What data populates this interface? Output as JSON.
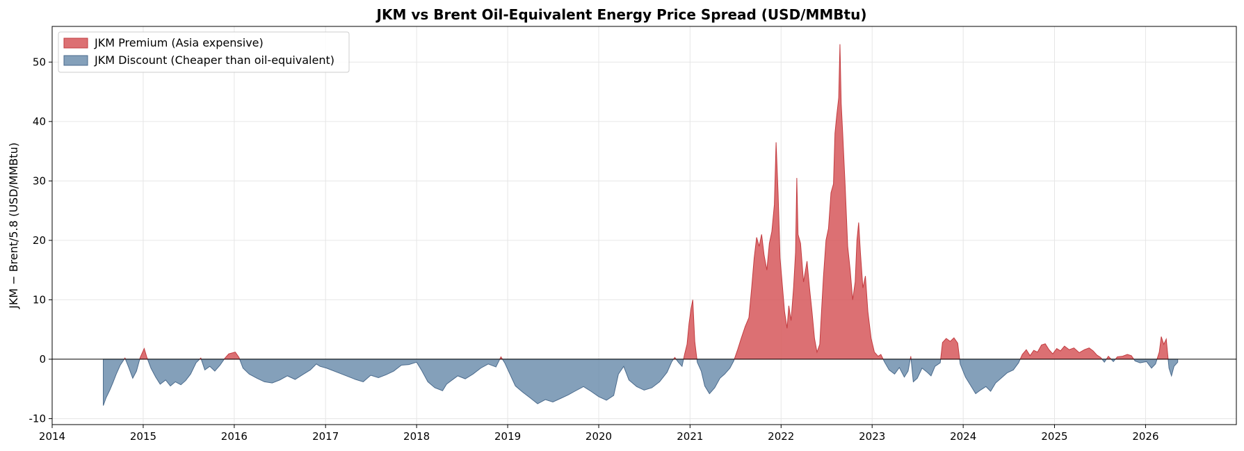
{
  "chart_data": {
    "type": "area",
    "title": "JKM vs Brent Oil-Equivalent Energy Price Spread (USD/MMBtu)",
    "xlabel": "",
    "ylabel": "JKM − Brent/5.8 (USD/MMBtu)",
    "xlim": [
      "2014-01-01",
      "2026-12-31"
    ],
    "ylim": [
      -11,
      56
    ],
    "x_ticks": [
      "2014",
      "2015",
      "2016",
      "2017",
      "2018",
      "2019",
      "2020",
      "2021",
      "2022",
      "2023",
      "2024",
      "2025",
      "2026"
    ],
    "y_ticks": [
      -10,
      0,
      10,
      20,
      30,
      40,
      50
    ],
    "y_tick_labels": [
      "-10",
      "0",
      "10",
      "20",
      "30",
      "40",
      "50"
    ],
    "grid": true,
    "legend_position": "top-left",
    "zero_line": true,
    "colors": {
      "premium_fill": "#d6575a",
      "premium_edge": "#c23b3f",
      "discount_fill": "#6f8fae",
      "discount_edge": "#4a6a8c",
      "zero_line": "#000000",
      "grid": "#e6e6e6"
    },
    "legend": [
      {
        "name": "JKM Premium (Asia expensive)",
        "color": "#d6575a"
      },
      {
        "name": "JKM Discount (Cheaper than oil-equivalent)",
        "color": "#6f8fae"
      }
    ],
    "series": [
      {
        "name": "JKM − Brent/5.8",
        "points": [
          [
            "2014-07-25",
            -7.8
          ],
          [
            "2014-08-05",
            -6.5
          ],
          [
            "2014-08-20",
            -5.2
          ],
          [
            "2014-09-01",
            -4.0
          ],
          [
            "2014-09-15",
            -2.5
          ],
          [
            "2014-10-01",
            -1.0
          ],
          [
            "2014-10-20",
            0.2
          ],
          [
            "2014-11-05",
            -1.5
          ],
          [
            "2014-11-20",
            -3.2
          ],
          [
            "2014-12-05",
            -2.0
          ],
          [
            "2014-12-20",
            0.3
          ],
          [
            "2015-01-05",
            1.8
          ],
          [
            "2015-01-15",
            0.4
          ],
          [
            "2015-02-01",
            -1.5
          ],
          [
            "2015-02-20",
            -3.0
          ],
          [
            "2015-03-10",
            -4.2
          ],
          [
            "2015-04-01",
            -3.5
          ],
          [
            "2015-04-20",
            -4.5
          ],
          [
            "2015-05-10",
            -3.8
          ],
          [
            "2015-06-01",
            -4.3
          ],
          [
            "2015-06-20",
            -3.6
          ],
          [
            "2015-07-10",
            -2.5
          ],
          [
            "2015-08-01",
            -0.6
          ],
          [
            "2015-08-20",
            0.2
          ],
          [
            "2015-09-05",
            -1.8
          ],
          [
            "2015-09-25",
            -1.2
          ],
          [
            "2015-10-15",
            -2.0
          ],
          [
            "2015-11-05",
            -1.0
          ],
          [
            "2015-11-25",
            0.2
          ],
          [
            "2015-12-10",
            0.9
          ],
          [
            "2016-01-05",
            1.2
          ],
          [
            "2016-01-20",
            0.3
          ],
          [
            "2016-02-05",
            -1.5
          ],
          [
            "2016-03-01",
            -2.5
          ],
          [
            "2016-04-01",
            -3.2
          ],
          [
            "2016-05-01",
            -3.8
          ],
          [
            "2016-06-01",
            -4.0
          ],
          [
            "2016-07-01",
            -3.5
          ],
          [
            "2016-08-01",
            -2.8
          ],
          [
            "2016-09-01",
            -3.4
          ],
          [
            "2016-10-01",
            -2.6
          ],
          [
            "2016-11-01",
            -1.8
          ],
          [
            "2016-11-25",
            -0.8
          ],
          [
            "2016-12-10",
            -1.2
          ],
          [
            "2017-01-05",
            -1.5
          ],
          [
            "2017-03-01",
            -2.4
          ],
          [
            "2017-05-01",
            -3.4
          ],
          [
            "2017-06-01",
            -3.8
          ],
          [
            "2017-07-01",
            -2.7
          ],
          [
            "2017-08-01",
            -3.1
          ],
          [
            "2017-09-01",
            -2.6
          ],
          [
            "2017-10-01",
            -2.0
          ],
          [
            "2017-11-01",
            -1.0
          ],
          [
            "2017-12-01",
            -0.9
          ],
          [
            "2018-01-01",
            -0.5
          ],
          [
            "2018-01-20",
            -1.8
          ],
          [
            "2018-02-15",
            -3.8
          ],
          [
            "2018-03-15",
            -4.8
          ],
          [
            "2018-04-15",
            -5.3
          ],
          [
            "2018-05-01",
            -4.2
          ],
          [
            "2018-05-20",
            -3.6
          ],
          [
            "2018-06-15",
            -2.8
          ],
          [
            "2018-07-15",
            -3.3
          ],
          [
            "2018-08-15",
            -2.5
          ],
          [
            "2018-09-15",
            -1.5
          ],
          [
            "2018-10-15",
            -0.8
          ],
          [
            "2018-11-15",
            -1.3
          ],
          [
            "2018-12-05",
            0.4
          ],
          [
            "2018-12-20",
            -0.6
          ],
          [
            "2019-01-10",
            -2.5
          ],
          [
            "2019-02-01",
            -4.5
          ],
          [
            "2019-03-01",
            -5.5
          ],
          [
            "2019-04-01",
            -6.5
          ],
          [
            "2019-05-01",
            -7.5
          ],
          [
            "2019-06-01",
            -6.8
          ],
          [
            "2019-07-01",
            -7.2
          ],
          [
            "2019-08-01",
            -6.6
          ],
          [
            "2019-09-01",
            -6.0
          ],
          [
            "2019-10-01",
            -5.3
          ],
          [
            "2019-11-01",
            -4.6
          ],
          [
            "2019-12-01",
            -5.4
          ],
          [
            "2020-01-01",
            -6.3
          ],
          [
            "2020-02-01",
            -6.9
          ],
          [
            "2020-03-01",
            -6.1
          ],
          [
            "2020-03-20",
            -2.5
          ],
          [
            "2020-04-10",
            -1.2
          ],
          [
            "2020-05-01",
            -3.5
          ],
          [
            "2020-06-01",
            -4.6
          ],
          [
            "2020-07-01",
            -5.2
          ],
          [
            "2020-08-01",
            -4.8
          ],
          [
            "2020-09-01",
            -3.8
          ],
          [
            "2020-10-01",
            -2.2
          ],
          [
            "2020-10-20",
            -0.4
          ],
          [
            "2020-11-01",
            0.3
          ],
          [
            "2020-11-15",
            -0.5
          ],
          [
            "2020-11-30",
            -1.2
          ],
          [
            "2020-12-10",
            0.8
          ],
          [
            "2020-12-20",
            2.5
          ],
          [
            "2020-12-28",
            6.0
          ],
          [
            "2021-01-05",
            8.5
          ],
          [
            "2021-01-12",
            10.0
          ],
          [
            "2021-01-20",
            3.0
          ],
          [
            "2021-01-30",
            -0.5
          ],
          [
            "2021-02-15",
            -2.0
          ],
          [
            "2021-03-01",
            -4.5
          ],
          [
            "2021-03-20",
            -5.8
          ],
          [
            "2021-04-10",
            -4.8
          ],
          [
            "2021-05-01",
            -3.2
          ],
          [
            "2021-05-20",
            -2.5
          ],
          [
            "2021-06-10",
            -1.5
          ],
          [
            "2021-06-25",
            -0.3
          ],
          [
            "2021-07-10",
            1.5
          ],
          [
            "2021-07-25",
            3.5
          ],
          [
            "2021-08-10",
            5.5
          ],
          [
            "2021-08-25",
            7.0
          ],
          [
            "2021-09-05",
            12.0
          ],
          [
            "2021-09-15",
            17.0
          ],
          [
            "2021-09-25",
            20.5
          ],
          [
            "2021-10-05",
            19.0
          ],
          [
            "2021-10-15",
            21.0
          ],
          [
            "2021-10-25",
            17.5
          ],
          [
            "2021-11-05",
            15.0
          ],
          [
            "2021-11-15",
            19.5
          ],
          [
            "2021-11-25",
            21.5
          ],
          [
            "2021-12-05",
            26.0
          ],
          [
            "2021-12-12",
            36.5
          ],
          [
            "2021-12-20",
            28.0
          ],
          [
            "2021-12-28",
            17.0
          ],
          [
            "2022-01-05",
            13.0
          ],
          [
            "2022-01-15",
            8.0
          ],
          [
            "2022-01-25",
            5.2
          ],
          [
            "2022-02-01",
            9.0
          ],
          [
            "2022-02-10",
            6.5
          ],
          [
            "2022-02-20",
            12.0
          ],
          [
            "2022-02-28",
            18.0
          ],
          [
            "2022-03-05",
            30.5
          ],
          [
            "2022-03-10",
            21.0
          ],
          [
            "2022-03-20",
            19.5
          ],
          [
            "2022-04-01",
            13.0
          ],
          [
            "2022-04-15",
            16.5
          ],
          [
            "2022-04-25",
            12.0
          ],
          [
            "2022-05-05",
            8.0
          ],
          [
            "2022-05-15",
            3.5
          ],
          [
            "2022-05-25",
            1.2
          ],
          [
            "2022-06-05",
            2.5
          ],
          [
            "2022-06-12",
            8.0
          ],
          [
            "2022-06-20",
            14.0
          ],
          [
            "2022-06-30",
            20.0
          ],
          [
            "2022-07-10",
            22.0
          ],
          [
            "2022-07-20",
            28.0
          ],
          [
            "2022-07-30",
            29.5
          ],
          [
            "2022-08-05",
            38.0
          ],
          [
            "2022-08-12",
            41.0
          ],
          [
            "2022-08-20",
            44.0
          ],
          [
            "2022-08-25",
            53.0
          ],
          [
            "2022-08-30",
            43.0
          ],
          [
            "2022-09-05",
            38.0
          ],
          [
            "2022-09-15",
            29.0
          ],
          [
            "2022-09-25",
            19.0
          ],
          [
            "2022-10-05",
            15.0
          ],
          [
            "2022-10-15",
            10.0
          ],
          [
            "2022-10-25",
            13.0
          ],
          [
            "2022-11-01",
            20.0
          ],
          [
            "2022-11-08",
            23.0
          ],
          [
            "2022-11-15",
            18.0
          ],
          [
            "2022-11-25",
            12.0
          ],
          [
            "2022-12-05",
            14.0
          ],
          [
            "2022-12-15",
            8.0
          ],
          [
            "2022-12-28",
            3.5
          ],
          [
            "2023-01-10",
            1.2
          ],
          [
            "2023-01-25",
            0.5
          ],
          [
            "2023-02-05",
            0.8
          ],
          [
            "2023-02-20",
            -0.5
          ],
          [
            "2023-03-10",
            -1.8
          ],
          [
            "2023-04-01",
            -2.5
          ],
          [
            "2023-04-20",
            -1.4
          ],
          [
            "2023-05-10",
            -3.0
          ],
          [
            "2023-05-25",
            -2.0
          ],
          [
            "2023-06-05",
            0.5
          ],
          [
            "2023-06-15",
            -3.8
          ],
          [
            "2023-07-01",
            -3.2
          ],
          [
            "2023-07-20",
            -1.5
          ],
          [
            "2023-08-10",
            -2.2
          ],
          [
            "2023-08-25",
            -2.8
          ],
          [
            "2023-09-10",
            -1.2
          ],
          [
            "2023-10-01",
            -0.6
          ],
          [
            "2023-10-10",
            2.8
          ],
          [
            "2023-10-25",
            3.5
          ],
          [
            "2023-11-10",
            3.0
          ],
          [
            "2023-11-25",
            3.6
          ],
          [
            "2023-12-10",
            2.7
          ],
          [
            "2023-12-20",
            -0.8
          ],
          [
            "2024-01-10",
            -3.0
          ],
          [
            "2024-02-01",
            -4.5
          ],
          [
            "2024-02-20",
            -5.8
          ],
          [
            "2024-03-10",
            -5.2
          ],
          [
            "2024-04-01",
            -4.6
          ],
          [
            "2024-04-20",
            -5.4
          ],
          [
            "2024-05-10",
            -4.0
          ],
          [
            "2024-06-01",
            -3.2
          ],
          [
            "2024-06-25",
            -2.3
          ],
          [
            "2024-07-20",
            -1.8
          ],
          [
            "2024-08-10",
            -0.6
          ],
          [
            "2024-08-25",
            0.8
          ],
          [
            "2024-09-10",
            1.6
          ],
          [
            "2024-09-25",
            0.6
          ],
          [
            "2024-10-10",
            1.5
          ],
          [
            "2024-10-25",
            1.2
          ],
          [
            "2024-11-10",
            2.4
          ],
          [
            "2024-11-25",
            2.6
          ],
          [
            "2024-12-10",
            1.6
          ],
          [
            "2024-12-25",
            0.9
          ],
          [
            "2025-01-10",
            1.8
          ],
          [
            "2025-01-25",
            1.4
          ],
          [
            "2025-02-10",
            2.2
          ],
          [
            "2025-03-01",
            1.6
          ],
          [
            "2025-03-20",
            1.9
          ],
          [
            "2025-04-10",
            1.1
          ],
          [
            "2025-05-01",
            1.6
          ],
          [
            "2025-05-20",
            1.9
          ],
          [
            "2025-06-05",
            1.4
          ],
          [
            "2025-06-20",
            0.7
          ],
          [
            "2025-07-05",
            0.3
          ],
          [
            "2025-07-20",
            -0.5
          ],
          [
            "2025-08-05",
            0.5
          ],
          [
            "2025-08-25",
            -0.4
          ],
          [
            "2025-09-10",
            0.4
          ],
          [
            "2025-10-01",
            0.5
          ],
          [
            "2025-10-20",
            0.8
          ],
          [
            "2025-11-05",
            0.6
          ],
          [
            "2025-11-20",
            -0.3
          ],
          [
            "2025-12-10",
            -0.6
          ],
          [
            "2026-01-05",
            -0.4
          ],
          [
            "2026-01-25",
            -1.5
          ],
          [
            "2026-02-10",
            -0.8
          ],
          [
            "2026-02-25",
            1.2
          ],
          [
            "2026-03-05",
            3.8
          ],
          [
            "2026-03-15",
            2.5
          ],
          [
            "2026-03-25",
            3.4
          ],
          [
            "2026-04-05",
            -1.5
          ],
          [
            "2026-04-15",
            -2.8
          ],
          [
            "2026-04-25",
            -1.2
          ],
          [
            "2026-05-10",
            -0.5
          ]
        ]
      }
    ]
  }
}
